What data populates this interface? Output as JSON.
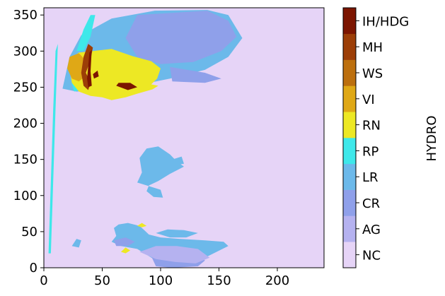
{
  "chart_data": {
    "type": "heatmap",
    "title": "",
    "xlabel": "",
    "ylabel": "",
    "colorbar_label": "HYDRO",
    "xlim": [
      0,
      240
    ],
    "ylim": [
      0,
      360
    ],
    "x_ticks": [
      0,
      50,
      100,
      150,
      200
    ],
    "y_ticks": [
      0,
      50,
      100,
      150,
      200,
      250,
      300,
      350
    ],
    "background_class": "NC",
    "classes": [
      {
        "label": "NC",
        "color": "#e6d4f7"
      },
      {
        "label": "AG",
        "color": "#b5b2f0"
      },
      {
        "label": "CR",
        "color": "#8fa0ea"
      },
      {
        "label": "LR",
        "color": "#6cb9ea"
      },
      {
        "label": "RP",
        "color": "#3ee8ea"
      },
      {
        "label": "RN",
        "color": "#ede824"
      },
      {
        "label": "VI",
        "color": "#dfa816"
      },
      {
        "label": "WS",
        "color": "#bc6f0e"
      },
      {
        "label": "MH",
        "color": "#9c3e07"
      },
      {
        "label": "IH/HDG",
        "color": "#7c1500"
      }
    ],
    "regions": [
      {
        "class": "LR",
        "points": [
          [
            16,
            248
          ],
          [
            22,
            292
          ],
          [
            32,
            322
          ],
          [
            58,
            345
          ],
          [
            95,
            356
          ],
          [
            140,
            357
          ],
          [
            158,
            350
          ],
          [
            170,
            318
          ],
          [
            158,
            292
          ],
          [
            138,
            274
          ],
          [
            108,
            262
          ],
          [
            78,
            252
          ],
          [
            52,
            246
          ],
          [
            28,
            244
          ]
        ]
      },
      {
        "class": "CR",
        "points": [
          [
            80,
            350
          ],
          [
            140,
            356
          ],
          [
            158,
            342
          ],
          [
            165,
            320
          ],
          [
            152,
            300
          ],
          [
            128,
            285
          ],
          [
            100,
            282
          ],
          [
            80,
            292
          ],
          [
            70,
            318
          ]
        ]
      },
      {
        "class": "CR",
        "points": [
          [
            108,
            278
          ],
          [
            138,
            270
          ],
          [
            152,
            262
          ],
          [
            138,
            256
          ],
          [
            110,
            258
          ]
        ]
      },
      {
        "class": "RP",
        "points": [
          [
            28,
            300
          ],
          [
            34,
            330
          ],
          [
            40,
            350
          ],
          [
            44,
            350
          ],
          [
            40,
            320
          ],
          [
            34,
            300
          ]
        ]
      },
      {
        "class": "RP",
        "points": [
          [
            24,
            255
          ],
          [
            30,
            262
          ],
          [
            34,
            248
          ],
          [
            26,
            244
          ]
        ]
      },
      {
        "class": "RN",
        "points": [
          [
            30,
            298
          ],
          [
            58,
            303
          ],
          [
            76,
            293
          ],
          [
            92,
            286
          ],
          [
            100,
            276
          ],
          [
            97,
            262
          ],
          [
            92,
            254
          ],
          [
            98,
            252
          ],
          [
            93,
            247
          ],
          [
            80,
            241
          ],
          [
            70,
            236
          ],
          [
            58,
            232
          ],
          [
            50,
            236
          ],
          [
            40,
            238
          ],
          [
            30,
            244
          ],
          [
            24,
            256
          ],
          [
            22,
            276
          ],
          [
            24,
            290
          ]
        ]
      },
      {
        "class": "VI",
        "points": [
          [
            22,
            292
          ],
          [
            30,
            297
          ],
          [
            36,
            287
          ],
          [
            36,
            266
          ],
          [
            30,
            258
          ],
          [
            24,
            262
          ],
          [
            20,
            276
          ]
        ]
      },
      {
        "class": "MH",
        "points": [
          [
            36,
            270
          ],
          [
            40,
            288
          ],
          [
            42,
            305
          ],
          [
            38,
            310
          ],
          [
            34,
            292
          ],
          [
            32,
            270
          ],
          [
            34,
            252
          ],
          [
            38,
            246
          ],
          [
            40,
            256
          ]
        ]
      },
      {
        "class": "IH/HDG",
        "points": [
          [
            37,
            262
          ],
          [
            39,
            298
          ],
          [
            41,
            302
          ],
          [
            40,
            272
          ],
          [
            41,
            252
          ],
          [
            38,
            250
          ]
        ]
      },
      {
        "class": "IH/HDG",
        "points": [
          [
            62,
            252
          ],
          [
            72,
            246
          ],
          [
            80,
            250
          ],
          [
            74,
            256
          ],
          [
            64,
            256
          ]
        ]
      },
      {
        "class": "IH/HDG",
        "points": [
          [
            42,
            268
          ],
          [
            46,
            273
          ],
          [
            47,
            265
          ],
          [
            43,
            262
          ]
        ]
      },
      {
        "class": "LR",
        "points": [
          [
            82,
            152
          ],
          [
            88,
            165
          ],
          [
            98,
            168
          ],
          [
            108,
            157
          ],
          [
            114,
            147
          ],
          [
            120,
            140
          ],
          [
            108,
            130
          ],
          [
            98,
            120
          ],
          [
            90,
            114
          ],
          [
            88,
            106
          ],
          [
            94,
            98
          ],
          [
            102,
            97
          ],
          [
            100,
            108
          ],
          [
            92,
            112
          ],
          [
            80,
            118
          ],
          [
            84,
            132
          ]
        ]
      },
      {
        "class": "LR",
        "points": [
          [
            110,
            150
          ],
          [
            118,
            154
          ],
          [
            120,
            144
          ],
          [
            112,
            142
          ]
        ]
      },
      {
        "class": "LR",
        "points": [
          [
            60,
            55
          ],
          [
            64,
            60
          ],
          [
            72,
            62
          ],
          [
            82,
            58
          ],
          [
            86,
            52
          ],
          [
            90,
            46
          ],
          [
            100,
            42
          ],
          [
            116,
            40
          ],
          [
            138,
            38
          ],
          [
            154,
            36
          ],
          [
            158,
            30
          ],
          [
            148,
            22
          ],
          [
            138,
            14
          ],
          [
            132,
            6
          ],
          [
            120,
            2
          ],
          [
            106,
            2
          ],
          [
            96,
            10
          ],
          [
            80,
            26
          ],
          [
            66,
            30
          ],
          [
            58,
            36
          ],
          [
            62,
            44
          ]
        ]
      },
      {
        "class": "LR",
        "points": [
          [
            96,
            48
          ],
          [
            106,
            53
          ],
          [
            120,
            52
          ],
          [
            132,
            48
          ],
          [
            122,
            42
          ],
          [
            108,
            42
          ]
        ]
      },
      {
        "class": "CR",
        "points": [
          [
            92,
            16
          ],
          [
            104,
            22
          ],
          [
            118,
            24
          ],
          [
            132,
            20
          ],
          [
            138,
            10
          ],
          [
            132,
            2
          ],
          [
            110,
            0
          ],
          [
            96,
            2
          ]
        ]
      },
      {
        "class": "CR",
        "points": [
          [
            60,
            38
          ],
          [
            70,
            42
          ],
          [
            78,
            36
          ],
          [
            72,
            30
          ],
          [
            62,
            30
          ]
        ]
      },
      {
        "class": "AG",
        "points": [
          [
            82,
            22
          ],
          [
            96,
            30
          ],
          [
            114,
            30
          ],
          [
            132,
            26
          ],
          [
            142,
            14
          ],
          [
            130,
            6
          ],
          [
            112,
            8
          ],
          [
            96,
            12
          ]
        ]
      },
      {
        "class": "LR",
        "points": [
          [
            24,
            30
          ],
          [
            28,
            40
          ],
          [
            32,
            38
          ],
          [
            30,
            28
          ]
        ]
      },
      {
        "class": "RN",
        "points": [
          [
            66,
            22
          ],
          [
            70,
            28
          ],
          [
            74,
            24
          ],
          [
            70,
            20
          ]
        ]
      },
      {
        "class": "RN",
        "points": [
          [
            80,
            58
          ],
          [
            84,
            62
          ],
          [
            88,
            58
          ],
          [
            84,
            56
          ]
        ]
      },
      {
        "class": "RP",
        "points": [
          [
            4,
            20
          ],
          [
            6,
            120
          ],
          [
            8,
            220
          ],
          [
            10,
            300
          ],
          [
            12,
            310
          ],
          [
            10,
            220
          ],
          [
            8,
            120
          ],
          [
            6,
            20
          ]
        ]
      }
    ]
  }
}
